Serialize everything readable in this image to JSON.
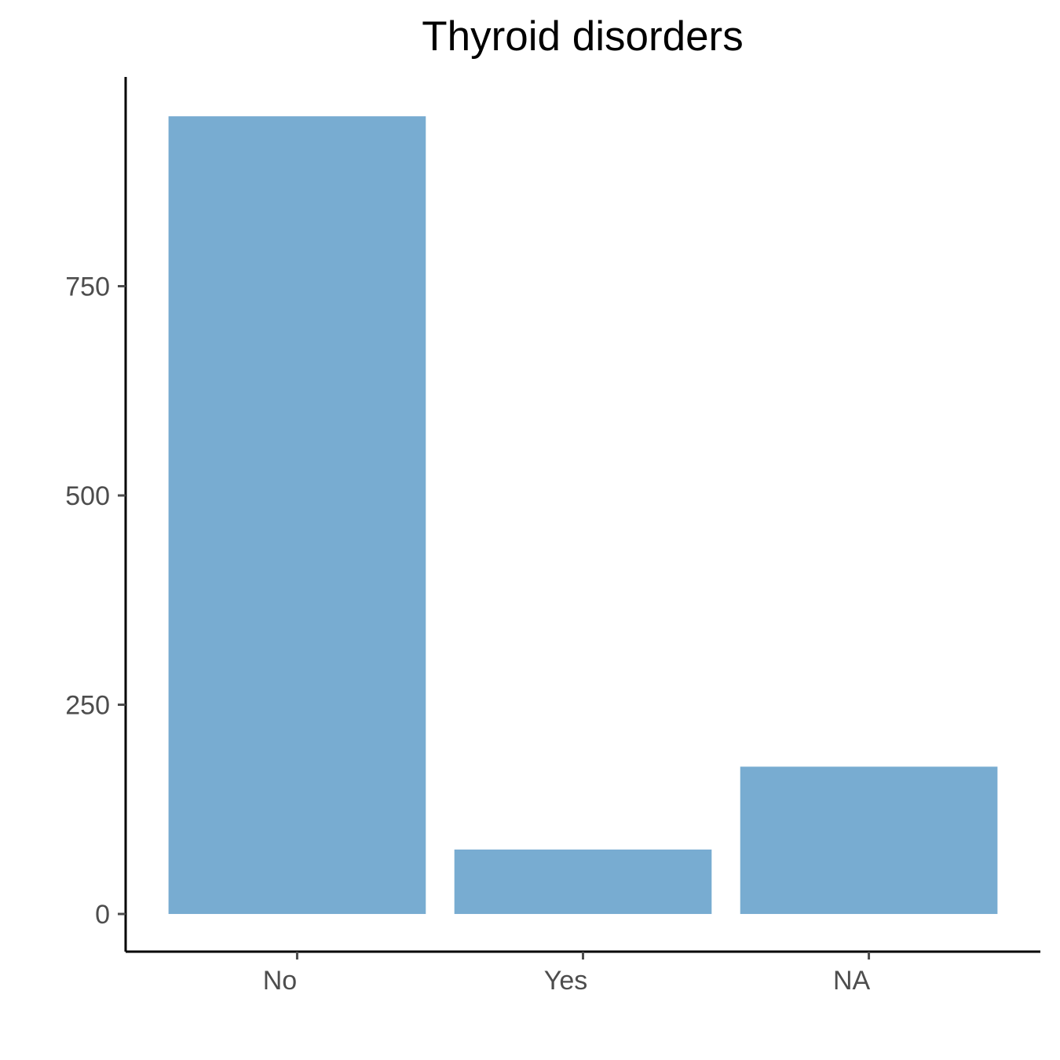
{
  "chart_data": {
    "type": "bar",
    "title": "Thyroid disorders",
    "xlabel": "",
    "ylabel": "",
    "categories": [
      "No",
      "Yes",
      "NA"
    ],
    "values": [
      953,
      77,
      176
    ],
    "ylim": [
      -45,
      1000
    ],
    "yticks": [
      0,
      250,
      500,
      750
    ],
    "ytick_labels": [
      "0",
      "250",
      "500",
      "750"
    ],
    "bar_color": "#78acd1",
    "axis_color": "#000000",
    "tick_label_color": "#4d4d4d",
    "grid": false,
    "legend": "none"
  }
}
